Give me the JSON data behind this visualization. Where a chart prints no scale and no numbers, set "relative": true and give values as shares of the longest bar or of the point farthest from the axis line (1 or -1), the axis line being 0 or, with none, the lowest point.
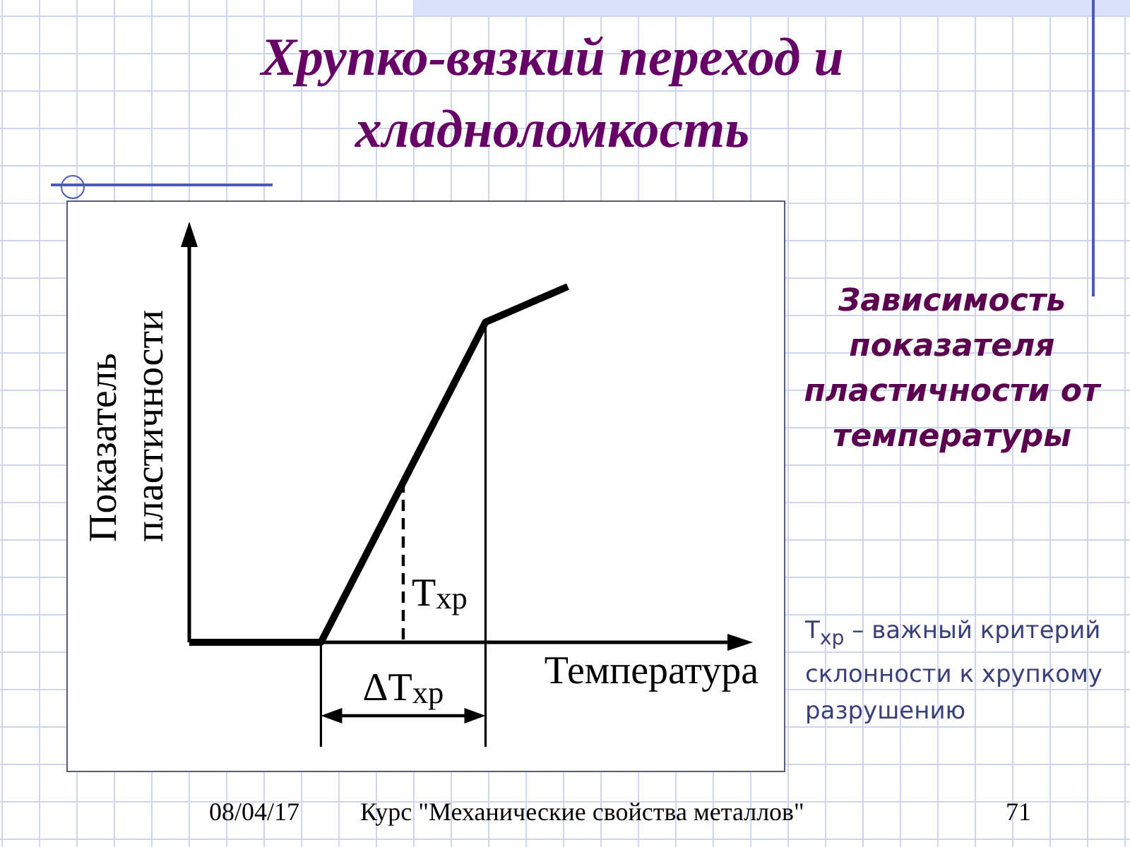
{
  "chart_data": {
    "type": "line",
    "title": "Хрупко-вязкий переход и хладноломкость",
    "subtitle": "Зависимость показателя пластичности от температуры",
    "xlabel": "Температура",
    "ylabel": "Показатель пластичности",
    "categories": [
      null,
      null,
      null,
      null,
      null,
      null,
      null,
      null,
      null,
      null,
      null,
      null,
      null,
      null,
      null,
      null,
      null,
      null,
      null,
      null,
      null,
      null,
      null,
      null
    ],
    "series": [
      {
        "color": "#000000",
        "values": [
          0,
          0,
          0,
          0,
          0,
          0,
          0,
          0,
          0,
          0.09,
          0.18,
          0.27,
          0.36,
          0.45,
          0.54,
          0.63,
          0.72,
          0.81,
          0.9,
          0.92,
          0.94,
          0.96,
          0.98,
          1
        ]
      }
    ],
    "relative": true,
    "annotations": [
      "T$_{хр}$",
      "ΔT$_{хр}$",
      "T$_{хр}$ – важный критерий склонности к хрупкому разрушению",
      "08/04/17",
      "Курс \"Механические свойства металлов\"",
      "71"
    ]
  }
}
